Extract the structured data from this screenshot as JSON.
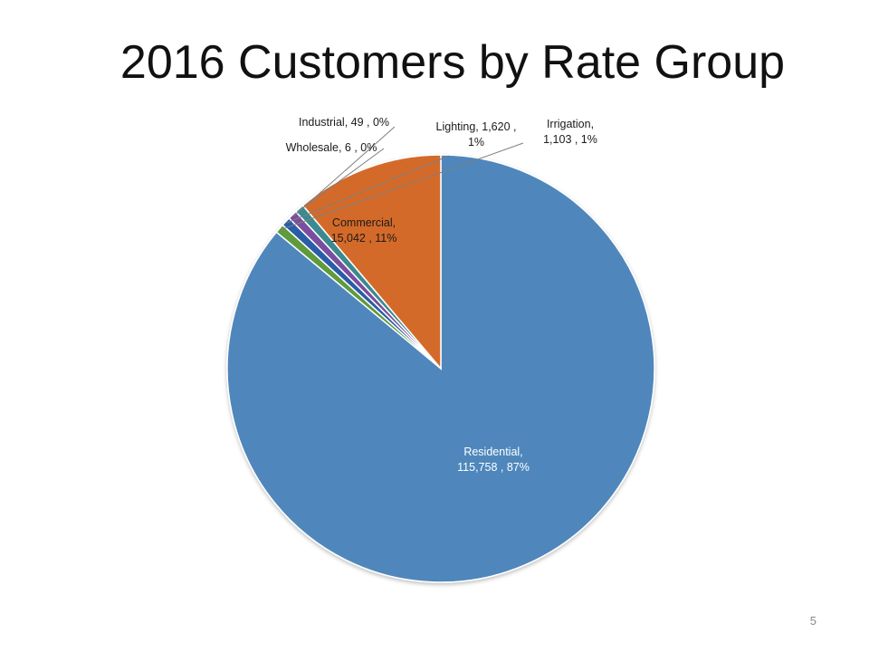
{
  "slide": {
    "title": "2016 Customers by Rate Group",
    "page_number": "5"
  },
  "chart_data": {
    "type": "pie",
    "title": "2016 Customers by Rate Group",
    "start": "12 o'clock",
    "direction": "clockwise",
    "slices": [
      {
        "name": "Residential",
        "value": 115758,
        "percent_label": "87%",
        "color": "#4f87bc",
        "label_lines": [
          "Residential,",
          "115,758 , 87%"
        ],
        "label_color": "#ffffff"
      },
      {
        "name": "Irrigation",
        "value": 1103,
        "percent_label": "1%",
        "color": "#5f9a3c",
        "label_lines": [
          "Irrigation,",
          "1,103 , 1%"
        ],
        "label_color": "#1a1a1a"
      },
      {
        "name": "Lighting",
        "value": 1620,
        "percent_label": "1%",
        "color": "#2b5ca8",
        "label_lines": [
          "Lighting,  1,620 ,",
          "1%"
        ],
        "label_color": "#1a1a1a"
      },
      {
        "name": "Industrial",
        "value": 49,
        "percent_label": "0%",
        "color": "#7a4d9e",
        "label_lines": [
          "Industrial,  49 , 0%"
        ],
        "label_color": "#1a1a1a"
      },
      {
        "name": "Wholesale",
        "value": 6,
        "percent_label": "0%",
        "color": "#3a8a8f",
        "label_lines": [
          "Wholesale,  6 , 0%"
        ],
        "label_color": "#1a1a1a"
      },
      {
        "name": "Commercial",
        "value": 15042,
        "percent_label": "11%",
        "color": "#d46a2a",
        "label_lines": [
          "Commercial,",
          "15,042 , 11%"
        ],
        "label_color": "#1a1a1a"
      }
    ]
  }
}
